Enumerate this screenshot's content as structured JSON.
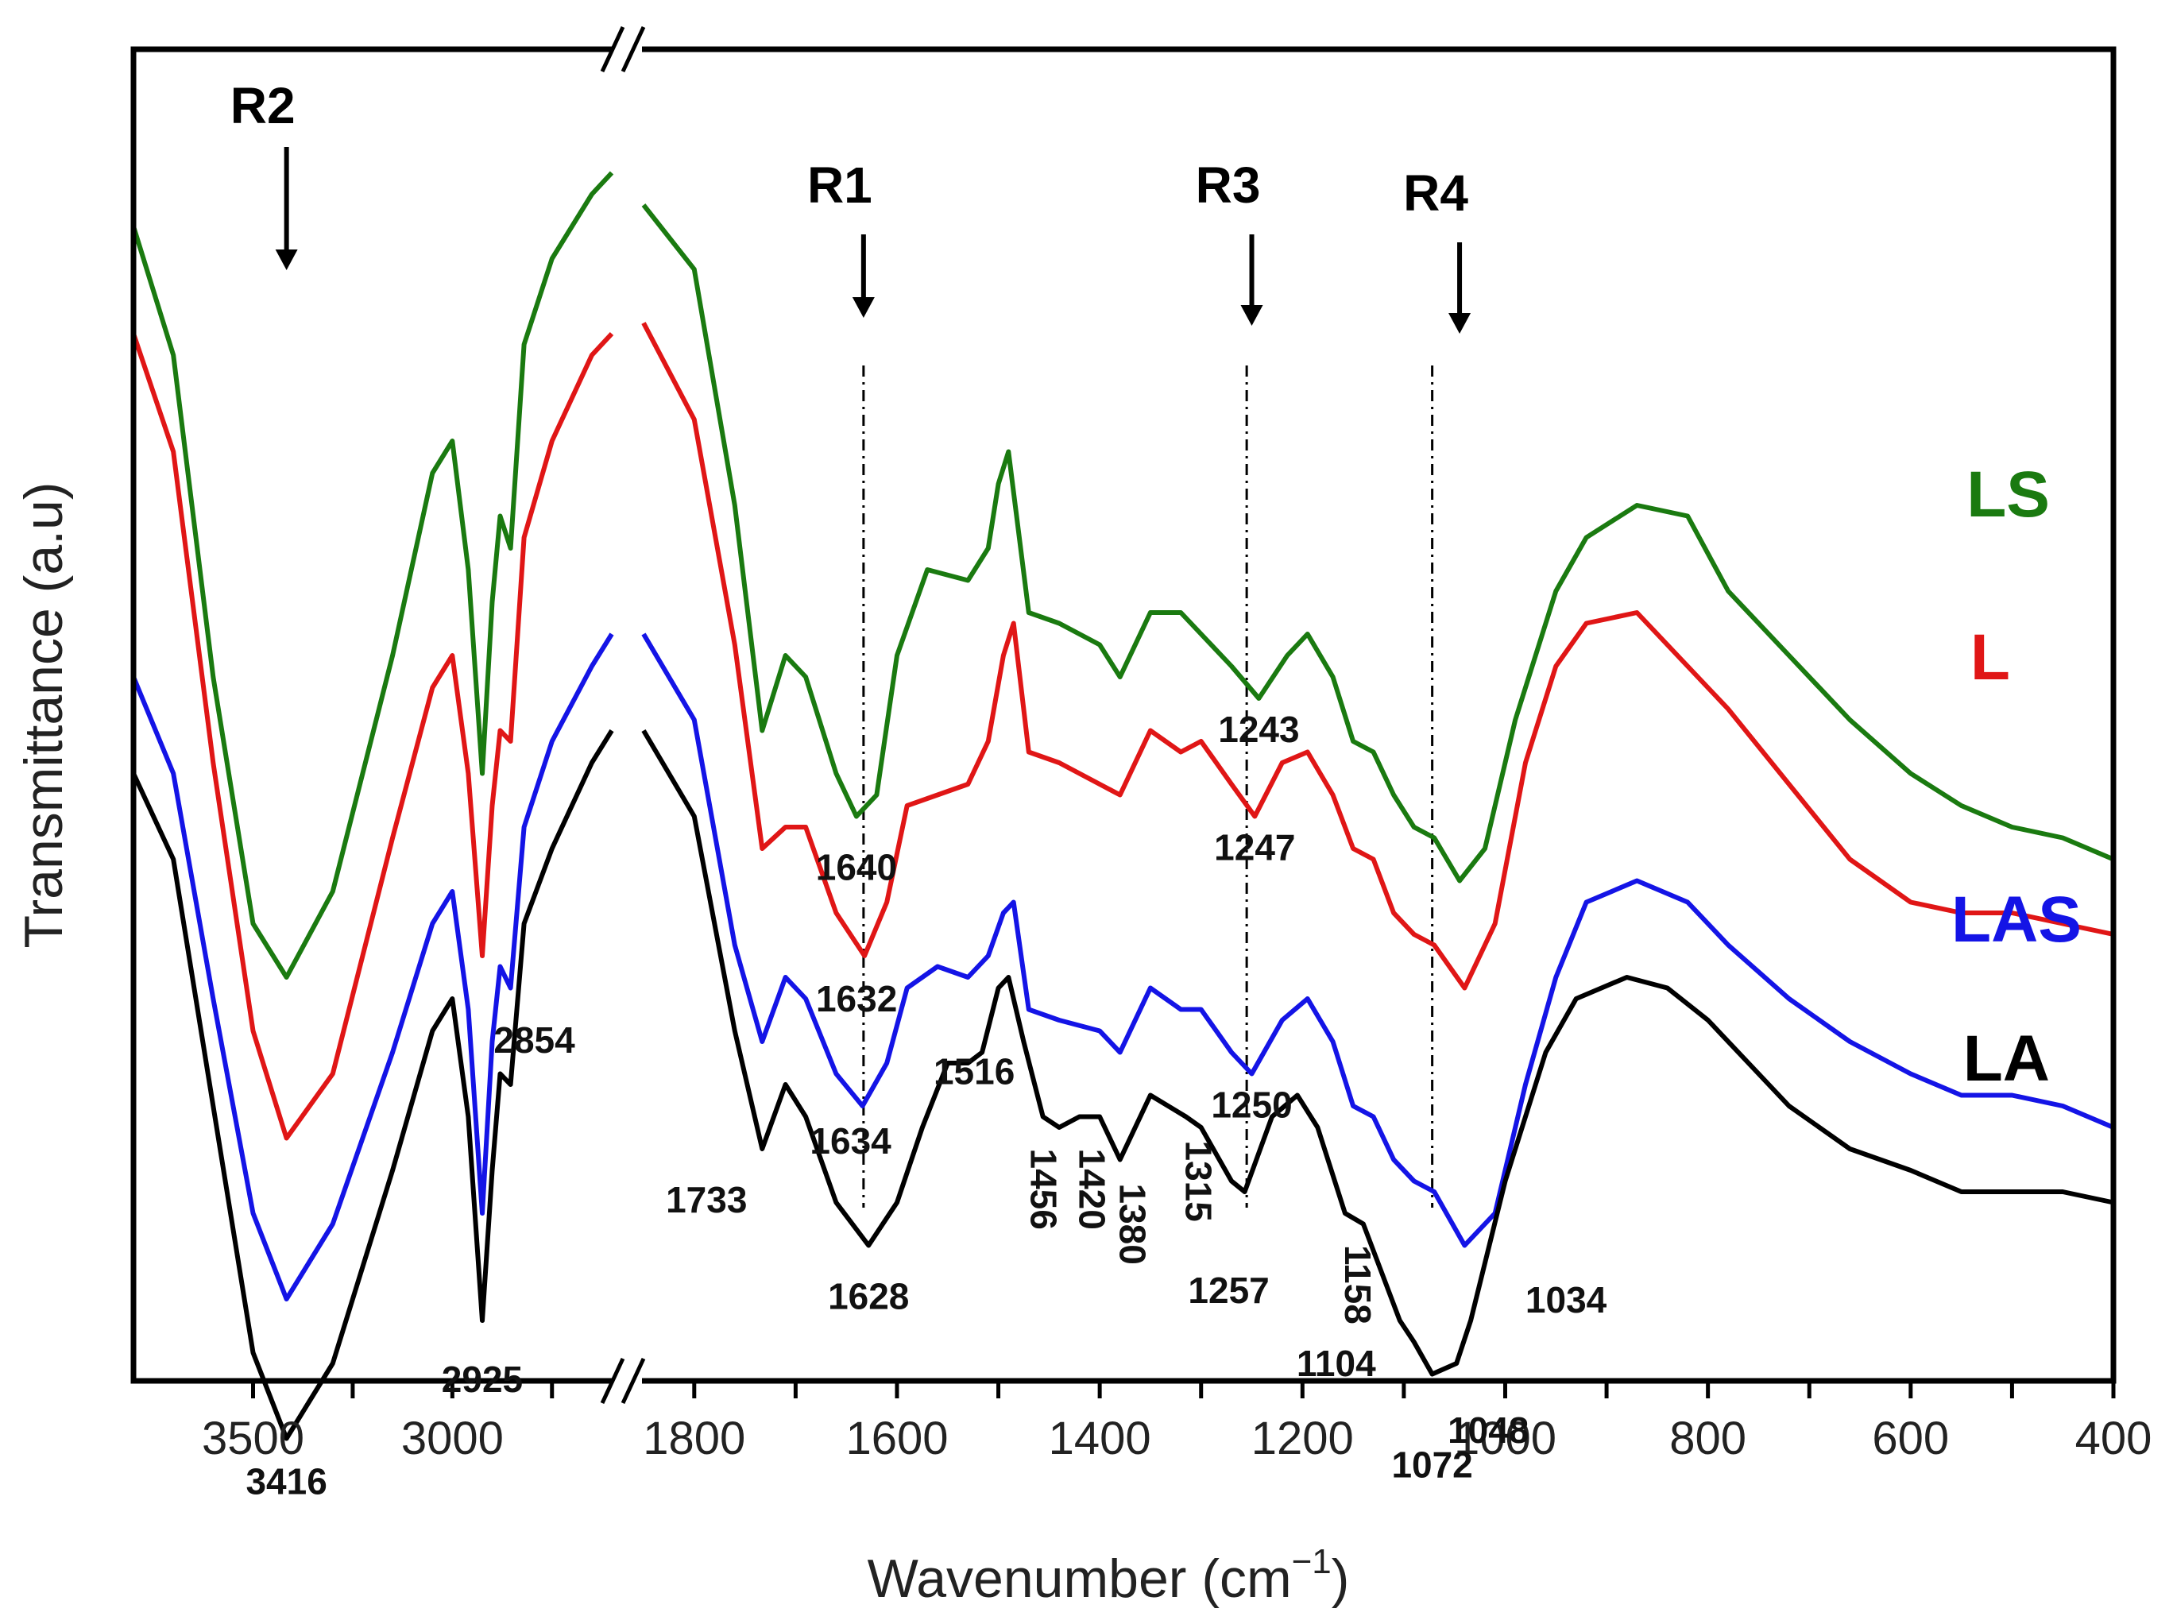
{
  "chart_data": {
    "type": "line",
    "title": "",
    "xlabel": "Wavenumber (cm",
    "xlabel_sup": "−1",
    "xlabel_close": ")",
    "ylabel": "Transmittance (a.u)",
    "x_break": {
      "left_range": [
        3800,
        2600
      ],
      "right_range": [
        1850,
        400
      ]
    },
    "xticks_left": [
      3500,
      3000
    ],
    "xticks_right": [
      1800,
      1600,
      1400,
      1200,
      1000,
      800,
      600,
      400
    ],
    "region_markers": [
      {
        "label": "R2",
        "x": 3416
      },
      {
        "label": "R1",
        "x": 1633
      },
      {
        "label": "R3",
        "x": 1250
      },
      {
        "label": "R4",
        "x": 1045
      }
    ],
    "reference_lines": [
      1633,
      1255,
      1072
    ],
    "series": [
      {
        "name": "LS",
        "color": "#1a7a10",
        "left": [
          [
            3800,
            0.1
          ],
          [
            3700,
            0.22
          ],
          [
            3600,
            0.52
          ],
          [
            3500,
            0.75
          ],
          [
            3416,
            0.8
          ],
          [
            3300,
            0.72
          ],
          [
            3150,
            0.5
          ],
          [
            3050,
            0.33
          ],
          [
            3000,
            0.3
          ],
          [
            2960,
            0.42
          ],
          [
            2925,
            0.61
          ],
          [
            2900,
            0.45
          ],
          [
            2880,
            0.37
          ],
          [
            2854,
            0.4
          ],
          [
            2820,
            0.21
          ],
          [
            2750,
            0.13
          ],
          [
            2650,
            0.07
          ],
          [
            2600,
            0.05
          ]
        ],
        "right": [
          [
            1850,
            0.08
          ],
          [
            1800,
            0.14
          ],
          [
            1760,
            0.36
          ],
          [
            1733,
            0.57
          ],
          [
            1710,
            0.5
          ],
          [
            1690,
            0.52
          ],
          [
            1660,
            0.61
          ],
          [
            1640,
            0.65
          ],
          [
            1620,
            0.63
          ],
          [
            1600,
            0.5
          ],
          [
            1570,
            0.42
          ],
          [
            1530,
            0.43
          ],
          [
            1510,
            0.4
          ],
          [
            1500,
            0.34
          ],
          [
            1490,
            0.31
          ],
          [
            1470,
            0.46
          ],
          [
            1440,
            0.47
          ],
          [
            1400,
            0.49
          ],
          [
            1380,
            0.52
          ],
          [
            1350,
            0.46
          ],
          [
            1320,
            0.46
          ],
          [
            1300,
            0.48
          ],
          [
            1270,
            0.51
          ],
          [
            1243,
            0.54
          ],
          [
            1215,
            0.5
          ],
          [
            1195,
            0.48
          ],
          [
            1170,
            0.52
          ],
          [
            1150,
            0.58
          ],
          [
            1130,
            0.59
          ],
          [
            1110,
            0.63
          ],
          [
            1090,
            0.66
          ],
          [
            1070,
            0.67
          ],
          [
            1045,
            0.71
          ],
          [
            1020,
            0.68
          ],
          [
            990,
            0.56
          ],
          [
            950,
            0.44
          ],
          [
            920,
            0.39
          ],
          [
            870,
            0.36
          ],
          [
            820,
            0.37
          ],
          [
            780,
            0.44
          ],
          [
            720,
            0.5
          ],
          [
            660,
            0.56
          ],
          [
            600,
            0.61
          ],
          [
            550,
            0.64
          ],
          [
            500,
            0.66
          ],
          [
            450,
            0.67
          ],
          [
            400,
            0.69
          ]
        ]
      },
      {
        "name": "L",
        "color": "#e01616",
        "left": [
          [
            3800,
            0.2
          ],
          [
            3700,
            0.31
          ],
          [
            3600,
            0.6
          ],
          [
            3500,
            0.85
          ],
          [
            3416,
            0.95
          ],
          [
            3300,
            0.89
          ],
          [
            3150,
            0.67
          ],
          [
            3050,
            0.53
          ],
          [
            3000,
            0.5
          ],
          [
            2960,
            0.61
          ],
          [
            2925,
            0.78
          ],
          [
            2900,
            0.64
          ],
          [
            2880,
            0.57
          ],
          [
            2854,
            0.58
          ],
          [
            2820,
            0.39
          ],
          [
            2750,
            0.3
          ],
          [
            2650,
            0.22
          ],
          [
            2600,
            0.2
          ]
        ],
        "right": [
          [
            1850,
            0.19
          ],
          [
            1800,
            0.28
          ],
          [
            1760,
            0.49
          ],
          [
            1733,
            0.68
          ],
          [
            1710,
            0.66
          ],
          [
            1690,
            0.66
          ],
          [
            1660,
            0.74
          ],
          [
            1632,
            0.78
          ],
          [
            1610,
            0.73
          ],
          [
            1590,
            0.64
          ],
          [
            1560,
            0.63
          ],
          [
            1530,
            0.62
          ],
          [
            1510,
            0.58
          ],
          [
            1495,
            0.5
          ],
          [
            1485,
            0.47
          ],
          [
            1470,
            0.59
          ],
          [
            1440,
            0.6
          ],
          [
            1400,
            0.62
          ],
          [
            1380,
            0.63
          ],
          [
            1350,
            0.57
          ],
          [
            1320,
            0.59
          ],
          [
            1300,
            0.58
          ],
          [
            1270,
            0.62
          ],
          [
            1247,
            0.65
          ],
          [
            1220,
            0.6
          ],
          [
            1195,
            0.59
          ],
          [
            1170,
            0.63
          ],
          [
            1150,
            0.68
          ],
          [
            1130,
            0.69
          ],
          [
            1110,
            0.74
          ],
          [
            1090,
            0.76
          ],
          [
            1070,
            0.77
          ],
          [
            1040,
            0.81
          ],
          [
            1010,
            0.75
          ],
          [
            980,
            0.6
          ],
          [
            950,
            0.51
          ],
          [
            920,
            0.47
          ],
          [
            870,
            0.46
          ],
          [
            820,
            0.51
          ],
          [
            780,
            0.55
          ],
          [
            720,
            0.62
          ],
          [
            660,
            0.69
          ],
          [
            600,
            0.73
          ],
          [
            550,
            0.74
          ],
          [
            500,
            0.74
          ],
          [
            450,
            0.75
          ],
          [
            400,
            0.76
          ]
        ]
      },
      {
        "name": "LAS",
        "color": "#1414e6",
        "left": [
          [
            3800,
            0.52
          ],
          [
            3700,
            0.61
          ],
          [
            3600,
            0.82
          ],
          [
            3500,
            1.02
          ],
          [
            3416,
            1.1
          ],
          [
            3300,
            1.03
          ],
          [
            3150,
            0.87
          ],
          [
            3050,
            0.75
          ],
          [
            3000,
            0.72
          ],
          [
            2960,
            0.83
          ],
          [
            2925,
            1.02
          ],
          [
            2900,
            0.86
          ],
          [
            2880,
            0.79
          ],
          [
            2854,
            0.81
          ],
          [
            2820,
            0.66
          ],
          [
            2750,
            0.58
          ],
          [
            2650,
            0.51
          ],
          [
            2600,
            0.48
          ]
        ],
        "right": [
          [
            1850,
            0.48
          ],
          [
            1800,
            0.56
          ],
          [
            1760,
            0.77
          ],
          [
            1733,
            0.86
          ],
          [
            1710,
            0.8
          ],
          [
            1690,
            0.82
          ],
          [
            1660,
            0.89
          ],
          [
            1634,
            0.92
          ],
          [
            1610,
            0.88
          ],
          [
            1590,
            0.81
          ],
          [
            1560,
            0.79
          ],
          [
            1530,
            0.8
          ],
          [
            1510,
            0.78
          ],
          [
            1495,
            0.74
          ],
          [
            1485,
            0.73
          ],
          [
            1470,
            0.83
          ],
          [
            1440,
            0.84
          ],
          [
            1400,
            0.85
          ],
          [
            1380,
            0.87
          ],
          [
            1350,
            0.81
          ],
          [
            1320,
            0.83
          ],
          [
            1300,
            0.83
          ],
          [
            1270,
            0.87
          ],
          [
            1250,
            0.89
          ],
          [
            1220,
            0.84
          ],
          [
            1195,
            0.82
          ],
          [
            1170,
            0.86
          ],
          [
            1150,
            0.92
          ],
          [
            1130,
            0.93
          ],
          [
            1110,
            0.97
          ],
          [
            1090,
            0.99
          ],
          [
            1070,
            1.0
          ],
          [
            1040,
            1.05
          ],
          [
            1010,
            1.02
          ],
          [
            980,
            0.9
          ],
          [
            950,
            0.8
          ],
          [
            920,
            0.73
          ],
          [
            870,
            0.71
          ],
          [
            820,
            0.73
          ],
          [
            780,
            0.77
          ],
          [
            720,
            0.82
          ],
          [
            660,
            0.86
          ],
          [
            600,
            0.89
          ],
          [
            550,
            0.91
          ],
          [
            500,
            0.91
          ],
          [
            450,
            0.92
          ],
          [
            400,
            0.94
          ]
        ]
      },
      {
        "name": "LA",
        "color": "#000000",
        "left": [
          [
            3800,
            0.61
          ],
          [
            3700,
            0.69
          ],
          [
            3600,
            0.92
          ],
          [
            3500,
            1.15
          ],
          [
            3416,
            1.23
          ],
          [
            3300,
            1.16
          ],
          [
            3150,
            0.98
          ],
          [
            3050,
            0.85
          ],
          [
            3000,
            0.82
          ],
          [
            2960,
            0.93
          ],
          [
            2925,
            1.12
          ],
          [
            2900,
            0.98
          ],
          [
            2880,
            0.89
          ],
          [
            2854,
            0.9
          ],
          [
            2820,
            0.75
          ],
          [
            2750,
            0.68
          ],
          [
            2650,
            0.6
          ],
          [
            2600,
            0.57
          ]
        ],
        "right": [
          [
            1850,
            0.57
          ],
          [
            1800,
            0.65
          ],
          [
            1760,
            0.85
          ],
          [
            1733,
            0.96
          ],
          [
            1710,
            0.9
          ],
          [
            1690,
            0.93
          ],
          [
            1660,
            1.01
          ],
          [
            1628,
            1.05
          ],
          [
            1600,
            1.01
          ],
          [
            1575,
            0.94
          ],
          [
            1550,
            0.88
          ],
          [
            1530,
            0.88
          ],
          [
            1516,
            0.87
          ],
          [
            1500,
            0.81
          ],
          [
            1490,
            0.8
          ],
          [
            1475,
            0.86
          ],
          [
            1456,
            0.93
          ],
          [
            1440,
            0.94
          ],
          [
            1420,
            0.93
          ],
          [
            1400,
            0.93
          ],
          [
            1380,
            0.97
          ],
          [
            1350,
            0.91
          ],
          [
            1315,
            0.93
          ],
          [
            1300,
            0.94
          ],
          [
            1270,
            0.99
          ],
          [
            1257,
            1.0
          ],
          [
            1230,
            0.93
          ],
          [
            1205,
            0.91
          ],
          [
            1185,
            0.94
          ],
          [
            1158,
            1.02
          ],
          [
            1140,
            1.03
          ],
          [
            1120,
            1.08
          ],
          [
            1104,
            1.12
          ],
          [
            1090,
            1.14
          ],
          [
            1072,
            1.17
          ],
          [
            1048,
            1.16
          ],
          [
            1034,
            1.12
          ],
          [
            1000,
            0.99
          ],
          [
            960,
            0.87
          ],
          [
            930,
            0.82
          ],
          [
            880,
            0.8
          ],
          [
            840,
            0.81
          ],
          [
            800,
            0.84
          ],
          [
            760,
            0.88
          ],
          [
            720,
            0.92
          ],
          [
            660,
            0.96
          ],
          [
            600,
            0.98
          ],
          [
            550,
            1.0
          ],
          [
            500,
            1.0
          ],
          [
            450,
            1.0
          ],
          [
            400,
            1.01
          ]
        ]
      }
    ],
    "peak_labels": [
      {
        "text": "3416",
        "series": "LA",
        "x": 3416
      },
      {
        "text": "2925",
        "series": "LA",
        "x": 2925
      },
      {
        "text": "2854",
        "series": "LA",
        "x": 2854
      },
      {
        "text": "1640",
        "series": "LS",
        "x": 1640
      },
      {
        "text": "1243",
        "series": "LS",
        "x": 1243
      },
      {
        "text": "1632",
        "series": "L",
        "x": 1632
      },
      {
        "text": "1247",
        "series": "L",
        "x": 1247
      },
      {
        "text": "1634",
        "series": "LAS",
        "x": 1634
      },
      {
        "text": "1516",
        "series": "LA",
        "x": 1516
      },
      {
        "text": "1250",
        "series": "LAS",
        "x": 1250
      },
      {
        "text": "1733",
        "series": "LA",
        "x": 1733
      },
      {
        "text": "1628",
        "series": "LA",
        "x": 1628
      },
      {
        "text": "1456",
        "series": "LA",
        "x": 1456,
        "rotated": true
      },
      {
        "text": "1420",
        "series": "LA",
        "x": 1420,
        "rotated": true
      },
      {
        "text": "1380",
        "series": "LA",
        "x": 1380,
        "rotated": true
      },
      {
        "text": "1315",
        "series": "LA",
        "x": 1315,
        "rotated": true
      },
      {
        "text": "1257",
        "series": "LA",
        "x": 1257
      },
      {
        "text": "1158",
        "series": "LA",
        "x": 1158,
        "rotated": true
      },
      {
        "text": "1104",
        "series": "LA",
        "x": 1104
      },
      {
        "text": "1072",
        "series": "LA",
        "x": 1072
      },
      {
        "text": "1048",
        "series": "LA",
        "x": 1048
      },
      {
        "text": "1034",
        "series": "LA",
        "x": 1034
      }
    ],
    "legend": [
      {
        "label": "LS",
        "color": "#1a7a10"
      },
      {
        "label": "L",
        "color": "#e01616"
      },
      {
        "label": "LAS",
        "color": "#1414e6"
      },
      {
        "label": "LA",
        "color": "#000000"
      }
    ]
  }
}
